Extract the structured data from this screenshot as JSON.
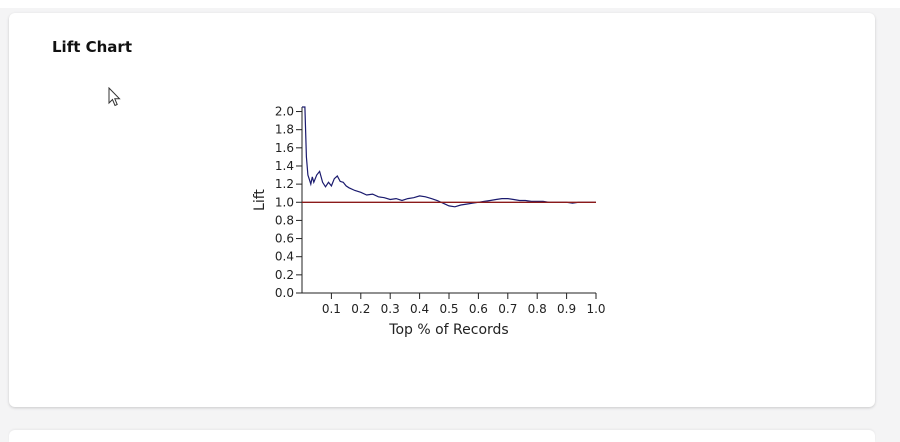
{
  "card": {
    "title": "Lift Chart"
  },
  "chart_data": {
    "type": "line",
    "title": "Lift Chart",
    "xlabel": "Top % of Records",
    "ylabel": "Lift",
    "xlim": [
      0,
      1
    ],
    "ylim": [
      0,
      2.05
    ],
    "x_ticks": [
      "0.1",
      "0.2",
      "0.3",
      "0.4",
      "0.5",
      "0.6",
      "0.7",
      "0.8",
      "0.9",
      "1.0"
    ],
    "y_ticks": [
      "0.0",
      "0.2",
      "0.4",
      "0.6",
      "0.8",
      "1.0",
      "1.2",
      "1.4",
      "1.6",
      "1.8",
      "2.0"
    ],
    "grid": false,
    "legend": "none",
    "series": [
      {
        "color": "#1a1a6e",
        "x": [
          0.0,
          0.01,
          0.015,
          0.02,
          0.025,
          0.03,
          0.035,
          0.04,
          0.05,
          0.06,
          0.07,
          0.08,
          0.09,
          0.1,
          0.11,
          0.12,
          0.13,
          0.14,
          0.15,
          0.16,
          0.18,
          0.2,
          0.22,
          0.24,
          0.26,
          0.28,
          0.3,
          0.32,
          0.34,
          0.36,
          0.38,
          0.4,
          0.42,
          0.44,
          0.46,
          0.48,
          0.5,
          0.52,
          0.54,
          0.56,
          0.58,
          0.6,
          0.62,
          0.64,
          0.66,
          0.68,
          0.7,
          0.72,
          0.74,
          0.76,
          0.78,
          0.8,
          0.82,
          0.84,
          0.86,
          0.88,
          0.9,
          0.92,
          0.94,
          0.96,
          0.98,
          1.0
        ],
        "y": [
          2.05,
          2.05,
          1.5,
          1.3,
          1.25,
          1.2,
          1.28,
          1.22,
          1.3,
          1.34,
          1.22,
          1.17,
          1.22,
          1.18,
          1.26,
          1.29,
          1.23,
          1.22,
          1.18,
          1.16,
          1.13,
          1.11,
          1.08,
          1.09,
          1.06,
          1.05,
          1.03,
          1.04,
          1.02,
          1.04,
          1.05,
          1.07,
          1.06,
          1.04,
          1.02,
          0.99,
          0.96,
          0.95,
          0.97,
          0.98,
          0.99,
          1.0,
          1.01,
          1.02,
          1.03,
          1.04,
          1.04,
          1.03,
          1.02,
          1.02,
          1.01,
          1.01,
          1.01,
          1.0,
          1.0,
          1.0,
          1.0,
          0.99,
          1.0,
          1.0,
          1.0,
          1.0
        ]
      },
      {
        "color": "#8b1a1a",
        "x": [
          0.0,
          1.0
        ],
        "y": [
          1.0,
          1.0
        ]
      }
    ]
  }
}
